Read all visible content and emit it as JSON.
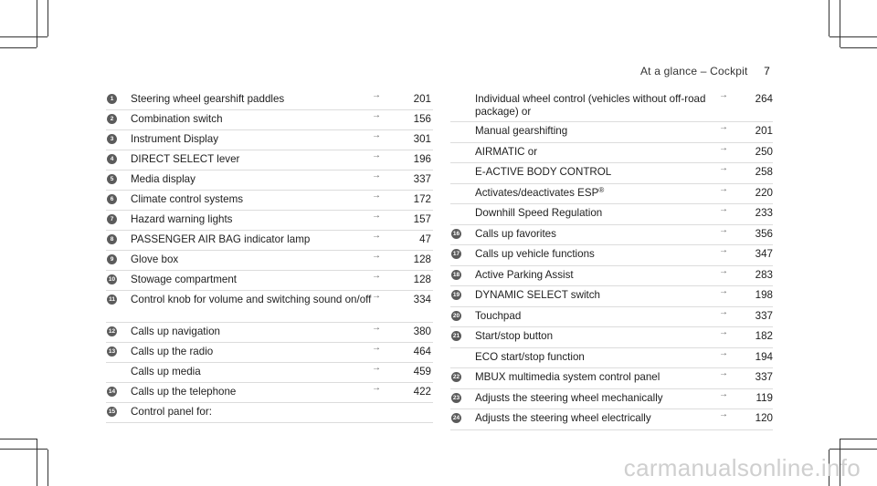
{
  "header": {
    "section": "At a glance – Cockpit",
    "page_number": "7"
  },
  "left_items": [
    {
      "num": "1",
      "label": "Steering wheel gearshift paddles",
      "page": "201"
    },
    {
      "num": "2",
      "label": "Combination switch",
      "page": "156"
    },
    {
      "num": "3",
      "label": "Instrument Display",
      "page": "301"
    },
    {
      "num": "4",
      "label": "DIRECT SELECT lever",
      "page": "196"
    },
    {
      "num": "5",
      "label": "Media display",
      "page": "337"
    },
    {
      "num": "6",
      "label": "Climate control systems",
      "page": "172"
    },
    {
      "num": "7",
      "label": "Hazard warning lights",
      "page": "157"
    },
    {
      "num": "8",
      "label": "PASSENGER AIR BAG indicator lamp",
      "page": "47"
    },
    {
      "num": "9",
      "label": "Glove box",
      "page": "128"
    },
    {
      "num": "10",
      "label": "Stowage compartment",
      "page": "128"
    },
    {
      "num": "11",
      "label": "Control knob for volume and switching sound on/off",
      "page": "334"
    },
    {
      "num": "12",
      "label": "Calls up navigation",
      "page": "380"
    },
    {
      "num": "13",
      "label": "Calls up the radio",
      "page": "464"
    },
    {
      "num": "",
      "label": "Calls up media",
      "page": "459"
    },
    {
      "num": "14",
      "label": "Calls up the telephone",
      "page": "422"
    },
    {
      "num": "15",
      "label": "Control panel for:",
      "page": ""
    }
  ],
  "right_items": [
    {
      "num": "",
      "label": "Individual wheel control (vehicles without off-road package) or",
      "page": "264"
    },
    {
      "num": "",
      "label": "Manual gearshifting",
      "page": "201"
    },
    {
      "num": "",
      "label": "AIRMATIC or",
      "page": "250"
    },
    {
      "num": "",
      "label": "E-ACTIVE BODY CONTROL",
      "page": "258"
    },
    {
      "num": "",
      "label": "Activates/deactivates ESP",
      "sup": "®",
      "page": "220"
    },
    {
      "num": "",
      "label": "Downhill Speed Regulation",
      "page": "233"
    },
    {
      "num": "16",
      "label": "Calls up favorites",
      "page": "356"
    },
    {
      "num": "17",
      "label": "Calls up vehicle functions",
      "page": "347"
    },
    {
      "num": "18",
      "label": "Active Parking Assist",
      "page": "283"
    },
    {
      "num": "19",
      "label": "DYNAMIC SELECT switch",
      "page": "198"
    },
    {
      "num": "20",
      "label": "Touchpad",
      "page": "337"
    },
    {
      "num": "21",
      "label": "Start/stop button",
      "page": "182"
    },
    {
      "num": "",
      "label": "ECO start/stop function",
      "page": "194"
    },
    {
      "num": "22",
      "label": "MBUX multimedia system control panel",
      "page": "337"
    },
    {
      "num": "23",
      "label": "Adjusts the steering wheel mechanically",
      "page": "119"
    },
    {
      "num": "24",
      "label": "Adjusts the steering wheel electrically",
      "page": "120"
    }
  ],
  "arrow_glyph": "→",
  "watermark": "carmanualsonline.info"
}
